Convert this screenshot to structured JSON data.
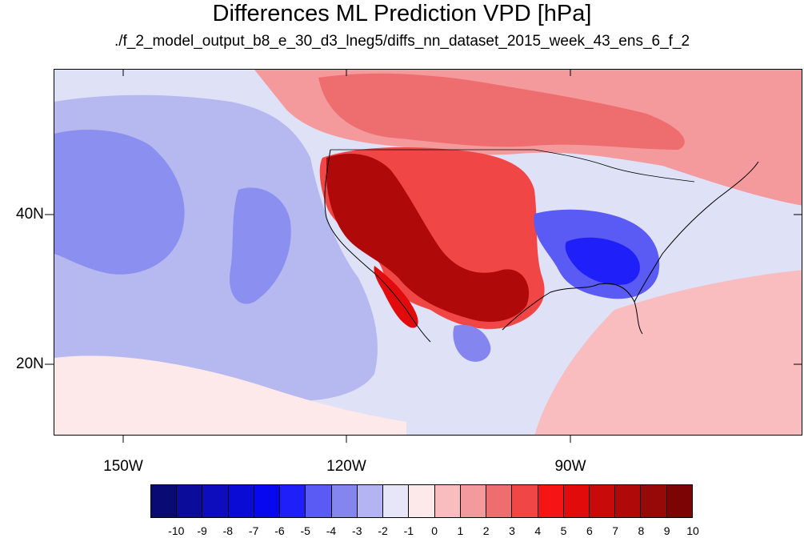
{
  "title": "Differences ML Prediction VPD [hPa]",
  "subtitle": "./f_2_model_output_b8_e_30_d3_lneg5/diffs_nn_dataset_2015_week_43_ens_6_f_2",
  "lat_labels": [
    "40N",
    "20N"
  ],
  "lon_labels": [
    "150W",
    "120W",
    "90W"
  ],
  "colorbar": {
    "labels": [
      "-10",
      "-9",
      "-8",
      "-7",
      "-6",
      "-5",
      "-4",
      "-3",
      "-2",
      "-1",
      "0",
      "1",
      "2",
      "3",
      "4",
      "5",
      "6",
      "7",
      "8",
      "9",
      "10"
    ],
    "colors": [
      "#0a0a73",
      "#0c0c9a",
      "#0d0dbd",
      "#0b0bd6",
      "#0808ee",
      "#1f1ffa",
      "#5a5af5",
      "#8585f0",
      "#b4b4f2",
      "#e6e6f8",
      "#fde8ea",
      "#f9bcbf",
      "#f49a9c",
      "#ee6e70",
      "#f14646",
      "#f61414",
      "#e10b0b",
      "#c90a0a",
      "#b00909",
      "#970808",
      "#7c0404"
    ]
  },
  "map": {
    "extent": {
      "lon": [
        -160,
        -60
      ],
      "lat": [
        10,
        59
      ]
    },
    "background_value": -1
  }
}
